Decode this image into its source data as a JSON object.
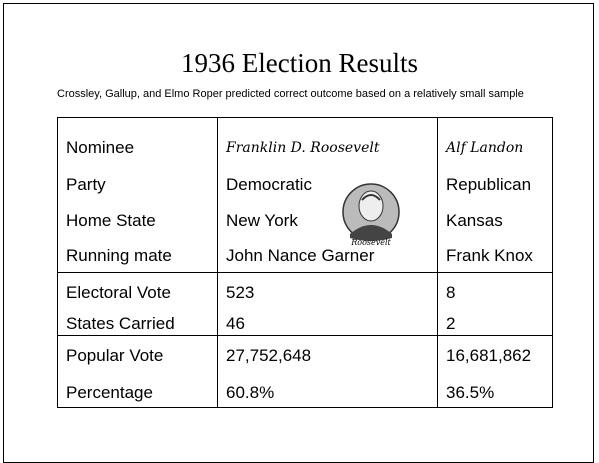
{
  "title": "1936 Election Results",
  "subtitle": "Crossley, Gallup, and Elmo Roper predicted correct outcome based on a relatively small sample",
  "portrait_caption": "Roosevelt",
  "table": {
    "rows": [
      [
        "Nominee",
        "Franklin D. Roosevelt",
        "Alf Landon"
      ],
      [
        "Party",
        "Democratic",
        "Republican"
      ],
      [
        "Home State",
        "New York",
        "Kansas"
      ],
      [
        "Running mate",
        "John Nance Garner",
        "Frank Knox"
      ],
      [
        "Electoral Vote",
        "523",
        "8"
      ],
      [
        "States Carried",
        "46",
        "2"
      ],
      [
        "Popular Vote",
        "27,752,648",
        "16,681,862"
      ],
      [
        "Percentage",
        "60.8%",
        "36.5%"
      ]
    ]
  }
}
